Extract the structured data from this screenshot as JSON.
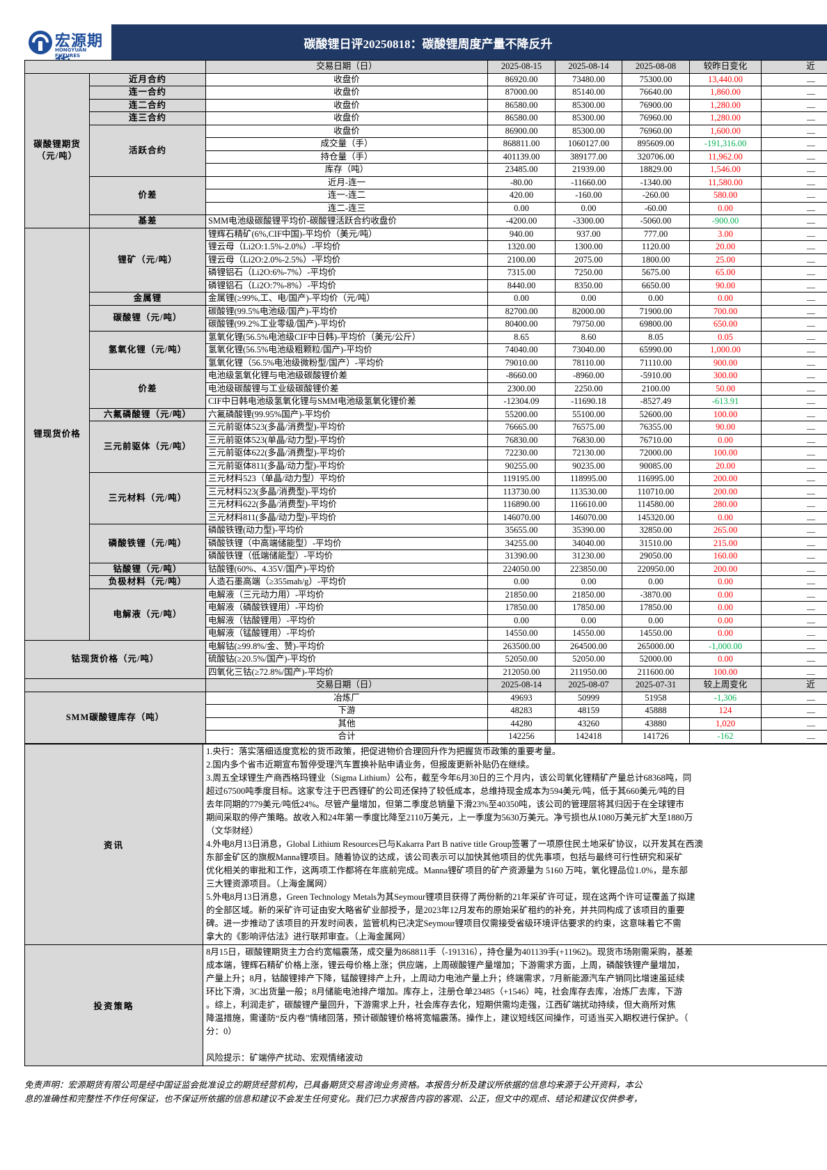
{
  "header": {
    "logo_cn": "宏源期货",
    "logo_en": "HONGYUAN FUTURES",
    "title": "碳酸锂日评20250818：碳酸锂周度产量不降反升"
  },
  "table": {
    "header": [
      "交易日期（日）",
      "2025-08-15",
      "2025-08-14",
      "2025-08-08",
      "较昨日变化",
      "近"
    ],
    "sections": [
      {
        "label": "碳酸锂期货（元/吨）",
        "subs": [
          {
            "label": "近月合约",
            "rows": [
              [
                "收盘价",
                "86920.00",
                "73480.00",
                "75300.00",
                "13,440.00"
              ]
            ]
          },
          {
            "label": "连一合约",
            "rows": [
              [
                "收盘价",
                "87000.00",
                "85140.00",
                "76640.00",
                "1,860.00"
              ]
            ]
          },
          {
            "label": "连二合约",
            "rows": [
              [
                "收盘价",
                "86580.00",
                "85300.00",
                "76900.00",
                "1,280.00"
              ]
            ]
          },
          {
            "label": "连三合约",
            "rows": [
              [
                "收盘价",
                "86580.00",
                "85300.00",
                "76960.00",
                "1,280.00"
              ]
            ]
          },
          {
            "label": "活跃合约",
            "rows": [
              [
                "收盘价",
                "86900.00",
                "85300.00",
                "76960.00",
                "1,600.00"
              ],
              [
                "成交量（手）",
                "868811.00",
                "1060127.00",
                "895609.00",
                "-191,316.00"
              ],
              [
                "持仓量（手）",
                "401139.00",
                "389177.00",
                "320706.00",
                "11,962.00"
              ],
              [
                "库存（吨）",
                "23485.00",
                "21939.00",
                "18829.00",
                "1,546.00"
              ]
            ]
          },
          {
            "label": "价差",
            "rows": [
              [
                "近月-连一",
                "-80.00",
                "-11660.00",
                "-1340.00",
                "11,580.00"
              ],
              [
                "连一-连二",
                "420.00",
                "-160.00",
                "-260.00",
                "580.00"
              ],
              [
                "连二-连三",
                "0.00",
                "0.00",
                "-60.00",
                "0.00"
              ]
            ]
          },
          {
            "label": "基差",
            "rows": [
              [
                "SMM电池级碳酸锂平均价-碳酸锂活跃合约收盘价",
                "-4200.00",
                "-3300.00",
                "-5060.00",
                "-900.00"
              ]
            ]
          }
        ]
      },
      {
        "label": "锂现货价格",
        "subs": [
          {
            "label": "锂矿（元/吨）",
            "rows": [
              [
                "锂辉石精矿(6%,CIF中国)-平均价（美元/吨）",
                "940.00",
                "937.00",
                "777.00",
                "3.00"
              ],
              [
                "锂云母（Li2O:1.5%-2.0%）-平均价",
                "1320.00",
                "1300.00",
                "1120.00",
                "20.00"
              ],
              [
                "锂云母（Li2O:2.0%-2.5%）-平均价",
                "2100.00",
                "2075.00",
                "1800.00",
                "25.00"
              ],
              [
                "磷锂铝石（Li2O:6%-7%）-平均价",
                "7315.00",
                "7250.00",
                "5675.00",
                "65.00"
              ],
              [
                "磷锂铝石（Li2O:7%-8%）-平均价",
                "8440.00",
                "8350.00",
                "6650.00",
                "90.00"
              ]
            ]
          },
          {
            "label": "金属锂",
            "rows": [
              [
                "金属锂(≥99%,工、电/国产)-平均价（元/吨）",
                "0.00",
                "0.00",
                "0.00",
                "0.00"
              ]
            ]
          },
          {
            "label": "碳酸锂（元/吨）",
            "rows": [
              [
                "碳酸锂(99.5%电池级/国产)-平均价",
                "82700.00",
                "82000.00",
                "71900.00",
                "700.00"
              ],
              [
                "碳酸锂(99.2%工业零级/国产)-平均价",
                "80400.00",
                "79750.00",
                "69800.00",
                "650.00"
              ]
            ]
          },
          {
            "label": "氢氧化锂（元/吨）",
            "rows": [
              [
                "氢氧化锂(56.5%电池级CIF中日韩)-平均价（美元/公斤）",
                "8.65",
                "8.60",
                "8.05",
                "0.05"
              ],
              [
                "氢氧化锂(56.5%电池级粗颗粒/国产)-平均价",
                "74040.00",
                "73040.00",
                "65990.00",
                "1,000.00"
              ],
              [
                "氢氧化锂（56.5%电池级微粉型/国产）-平均价",
                "79010.00",
                "78110.00",
                "71110.00",
                "900.00"
              ]
            ]
          },
          {
            "label": "价差",
            "rows": [
              [
                "电池级氢氧化锂与电池级碳酸锂价差",
                "-8660.00",
                "-8960.00",
                "-5910.00",
                "300.00"
              ],
              [
                "电池级碳酸锂与工业级碳酸锂价差",
                "2300.00",
                "2250.00",
                "2100.00",
                "50.00"
              ],
              [
                "CIF中日韩电池级氢氧化锂与SMM电池级氢氧化锂价差",
                "-12304.09",
                "-11690.18",
                "-8527.49",
                "-613.91"
              ]
            ]
          },
          {
            "label": "六氟磷酸锂（元/吨）",
            "rows": [
              [
                "六氟磷酸锂(99.95%国产)-平均价",
                "55200.00",
                "55100.00",
                "52600.00",
                "100.00"
              ]
            ]
          },
          {
            "label": "三元前驱体（元/吨）",
            "rows": [
              [
                "三元前驱体523(多晶/消费型)-平均价",
                "76665.00",
                "76575.00",
                "76355.00",
                "90.00"
              ],
              [
                "三元前驱体523(单晶/动力型)-平均价",
                "76830.00",
                "76830.00",
                "76710.00",
                "0.00"
              ],
              [
                "三元前驱体622(多晶/消费型)-平均价",
                "72230.00",
                "72130.00",
                "72000.00",
                "100.00"
              ],
              [
                "三元前驱体811(多晶/动力型)-平均价",
                "90255.00",
                "90235.00",
                "90085.00",
                "20.00"
              ]
            ]
          },
          {
            "label": "三元材料（元/吨）",
            "rows": [
              [
                "三元材料523（单晶/动力型）平均价",
                "119195.00",
                "118995.00",
                "116995.00",
                "200.00"
              ],
              [
                "三元材料523(多晶/消费型)-平均价",
                "113730.00",
                "113530.00",
                "110710.00",
                "200.00"
              ],
              [
                "三元材料622(多晶/消费型)-平均价",
                "116890.00",
                "116610.00",
                "114580.00",
                "280.00"
              ],
              [
                "三元材料811(多晶/动力型)-平均价",
                "146070.00",
                "146070.00",
                "145320.00",
                "0.00"
              ]
            ]
          },
          {
            "label": "磷酸铁锂（元/吨）",
            "rows": [
              [
                "磷酸铁锂(动力型)-平均价",
                "35655.00",
                "35390.00",
                "32850.00",
                "265.00"
              ],
              [
                "磷酸铁锂（中高端储能型）-平均价",
                "34255.00",
                "34040.00",
                "31510.00",
                "215.00"
              ],
              [
                "磷酸铁锂（低端储能型）-平均价",
                "31390.00",
                "31230.00",
                "29050.00",
                "160.00"
              ]
            ]
          },
          {
            "label": "钴酸锂（元/吨）",
            "rows": [
              [
                "钴酸锂(60%、4.35V/国产)-平均价",
                "224050.00",
                "223850.00",
                "220950.00",
                "200.00"
              ]
            ]
          },
          {
            "label": "负极材料（元/吨）",
            "rows": [
              [
                "人造石墨高端（≥355mah/g）-平均价",
                "0.00",
                "0.00",
                "0.00",
                "0.00"
              ]
            ]
          },
          {
            "label": "电解液（元/吨）",
            "rows": [
              [
                "电解液（三元动力用）-平均价",
                "21850.00",
                "21850.00",
                "-3870.00",
                "0.00"
              ],
              [
                "电解液（磷酸铁锂用）-平均价",
                "17850.00",
                "17850.00",
                "17850.00",
                "0.00"
              ],
              [
                "电解液（钴酸锂用）-平均价",
                "0.00",
                "0.00",
                "0.00",
                "0.00"
              ],
              [
                "电解液（锰酸锂用）-平均价",
                "14550.00",
                "14550.00",
                "14550.00",
                "0.00"
              ]
            ]
          }
        ]
      },
      {
        "label": "钴现货价格（元/吨）",
        "rows": [
          [
            "电解钴(≥99.8%/金、赞)-平均价",
            "263500.00",
            "264500.00",
            "265000.00",
            "-1,000.00"
          ],
          [
            "硫酸钴(≥20.5%/国产)-平均价",
            "52050.00",
            "52050.00",
            "52000.00",
            "0.00"
          ],
          [
            "四氧化三钴(≥72.8%/国产)-平均价",
            "212050.00",
            "211950.00",
            "211600.00",
            "100.00"
          ]
        ]
      }
    ]
  },
  "inventory": {
    "header": [
      "交易日期（日）",
      "2025-08-14",
      "2025-08-07",
      "2025-07-31",
      "较上周变化",
      "近"
    ],
    "label": "SMM碳酸锂库存（吨）",
    "rows": [
      [
        "冶炼厂",
        "49693",
        "50999",
        "51958",
        "-1,306"
      ],
      [
        "下游",
        "48283",
        "48159",
        "45888",
        "124"
      ],
      [
        "其他",
        "44280",
        "43260",
        "43880",
        "1,020"
      ],
      [
        "合计",
        "142256",
        "142418",
        "141726",
        "-162"
      ]
    ]
  },
  "news": {
    "label": "资讯",
    "lines": [
      "1.央行：落实落细适度宽松的货币政策，把促进物价合理回升作为把握货币政策的重要考量。",
      "2.国内多个省市近期宣布暂停受理汽车置换补贴申请业务，但报废更新补贴仍在继续。",
      "3.周五全球锂生产商西格玛锂业（Sigma Lithium）公布，截至今年6月30日的三个月内，该公司氧化锂精矿产量总计68368吨，同",
      "超过67500吨季度目标。这家专注于巴西锂矿的公司还保持了较低成本，总维持现金成本为594美元/吨，低于其660美元/吨的目",
      "去年同期的779美元/吨低24%。尽管产量增加，但第二季度总销量下滑23%至40350吨，该公司的管理层将其归因于在全球锂市",
      "期间采取的停产策略。故收入和24年第一季度比降至2110万美元，上一季度为5630万美元。净亏损也从1080万美元扩大至1880万",
      "（文华财经）",
      "4.外电8月13日消息，Global Lithium Resources已与Kakarra Part B native title Group签署了一项原住民土地采矿协议，以开发其在西澳",
      "东部金矿区的旗舰Manna锂项目。随着协议的达成，该公司表示可以加快其他项目的优先事项，包括与最终可行性研究和采矿",
      "优化相关的审批和工作，这两项工作都将在年底前完成。Manna锂矿项目的矿产资源量为 5160 万吨，氧化锂品位1.0%，是东部",
      "三大锂资源项目。（上海金属网）",
      "5.外电8月13日消息，Green Technology Metals为其Seymour锂项目获得了两份新的21年采矿许可证，现在这两个许可证覆盖了拟建",
      "的全部区域。新的采矿许可证由安大略省矿业部授予，是2023年12月发布的原始采矿租约的补充，并共同构成了该项目的重要",
      "碑。进一步推动了该项目的开发时间表，监管机构已决定Seymour锂项目仅需接受省级环境评估要求的约束，这意味着它不需",
      "拿大的《影响评估法》进行联邦审查。（上海金属网）"
    ]
  },
  "strategy": {
    "label": "投资策略",
    "lines": [
      "8月15日，碳酸锂期货主力合约宽幅震荡，成交量为868811手（-191316），持仓量为401139手(+11962)。现货市场刚需采购，基差",
      "成本端，锂辉石精矿价格上涨，锂云母价格上涨；供应端，上周碳酸锂产量增加；下游需求方面，上周，磷酸铁锂产量增加，",
      "产量上升；8月，钴酸锂排产下降，锰酸锂排产上升，上周动力电池产量上升；终端需求，7月新能源汽车产销同比增速虽延续",
      "环比下滑，3C出货量一般；8月储能电池排产增加。库存上，注册仓单23485（+1546）吨，社会库存去库，冶炼厂去库，下游",
      "。综上，利润走扩，碳酸锂产量回升，下游需求上升，社会库存去化，短期供需均走强，江西矿端扰动持续，但大商所对焦",
      "降温措施，需谨防“反内卷”情绪回落，预计碳酸锂价格将宽幅震荡。操作上，建议短线区间操作，可适当买入期权进行保护。（",
      "分：0）"
    ],
    "risk": "风险提示：矿端停产扰动、宏观情绪波动"
  },
  "disclaimer": {
    "lines": [
      "免责声明：宏源期货有限公司是经中国证监会批准设立的期货经营机构，已具备期货交易咨询业务资格。本报告分析及建议所依据的信息均来源于公开资料，本公",
      "息的准确性和完整性不作任何保证，也不保证所依据的信息和建议不会发生任何变化。我们已力求报告内容的客观、公正，但文中的观点、结论和建议仅供参考，"
    ]
  }
}
